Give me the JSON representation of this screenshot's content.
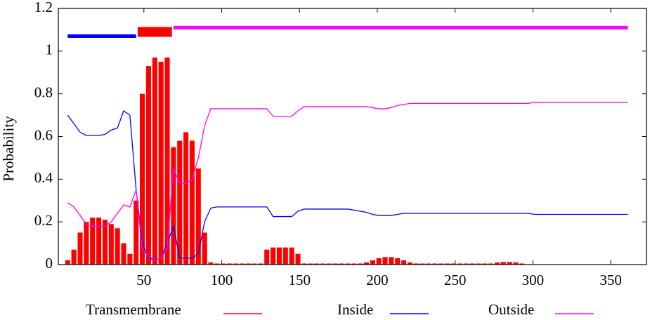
{
  "chart_data": {
    "type": "line",
    "y_label": "Probability",
    "xlim": [
      -5,
      373
    ],
    "ylim": [
      0,
      1.2
    ],
    "xticks": [
      50,
      100,
      150,
      200,
      250,
      300,
      350
    ],
    "yticks": [
      0,
      0.2,
      0.4,
      0.6,
      0.8,
      1,
      1.2
    ],
    "x": [
      1,
      5,
      9,
      13,
      17,
      21,
      25,
      29,
      33,
      37,
      41,
      45,
      49,
      53,
      57,
      61,
      65,
      69,
      73,
      77,
      81,
      85,
      89,
      93,
      97,
      101,
      105,
      109,
      113,
      117,
      121,
      125,
      129,
      133,
      137,
      141,
      145,
      149,
      153,
      157,
      161,
      165,
      169,
      173,
      177,
      181,
      185,
      189,
      193,
      197,
      201,
      205,
      209,
      213,
      217,
      221,
      225,
      229,
      233,
      237,
      241,
      245,
      249,
      253,
      257,
      261,
      265,
      269,
      273,
      277,
      281,
      285,
      289,
      293,
      297,
      301,
      305,
      309,
      313,
      317,
      321,
      325,
      329,
      333,
      337,
      341,
      345,
      349,
      353,
      357,
      361
    ],
    "series": [
      {
        "name": "Transmembrane",
        "type": "bar",
        "color": "#ff0000",
        "values": [
          0.02,
          0.07,
          0.15,
          0.2,
          0.22,
          0.22,
          0.21,
          0.19,
          0.17,
          0.1,
          0.05,
          0.3,
          0.8,
          0.93,
          0.97,
          0.95,
          0.97,
          0.55,
          0.58,
          0.62,
          0.58,
          0.45,
          0.15,
          0.01,
          0.005,
          0.005,
          0.005,
          0.005,
          0.005,
          0.005,
          0.005,
          0.005,
          0.07,
          0.08,
          0.08,
          0.08,
          0.08,
          0.05,
          0.005,
          0.005,
          0.005,
          0.005,
          0.005,
          0.005,
          0.005,
          0.005,
          0.005,
          0.005,
          0.01,
          0.02,
          0.03,
          0.035,
          0.035,
          0.03,
          0.02,
          0.01,
          0.005,
          0.005,
          0.005,
          0.005,
          0.005,
          0.005,
          0.005,
          0.005,
          0.005,
          0.005,
          0.005,
          0.005,
          0.005,
          0.01,
          0.012,
          0.012,
          0.01,
          0.005,
          0,
          0,
          0,
          0,
          0,
          0,
          0,
          0,
          0,
          0,
          0,
          0,
          0,
          0,
          0,
          0,
          0
        ]
      },
      {
        "name": "Inside",
        "type": "line",
        "color": "#0000ff",
        "values": [
          0.7,
          0.66,
          0.62,
          0.605,
          0.605,
          0.605,
          0.61,
          0.63,
          0.64,
          0.72,
          0.7,
          0.35,
          0.1,
          0.03,
          0.02,
          0.03,
          0.1,
          0.18,
          0.03,
          0.03,
          0.03,
          0.05,
          0.2,
          0.265,
          0.27,
          0.27,
          0.27,
          0.27,
          0.27,
          0.27,
          0.27,
          0.27,
          0.27,
          0.225,
          0.225,
          0.225,
          0.225,
          0.25,
          0.26,
          0.26,
          0.26,
          0.26,
          0.26,
          0.26,
          0.26,
          0.26,
          0.255,
          0.25,
          0.245,
          0.235,
          0.23,
          0.23,
          0.23,
          0.235,
          0.24,
          0.24,
          0.24,
          0.24,
          0.24,
          0.24,
          0.24,
          0.24,
          0.24,
          0.24,
          0.24,
          0.24,
          0.24,
          0.24,
          0.24,
          0.24,
          0.24,
          0.24,
          0.24,
          0.24,
          0.24,
          0.235,
          0.235,
          0.235,
          0.235,
          0.235,
          0.235,
          0.235,
          0.235,
          0.235,
          0.235,
          0.235,
          0.235,
          0.235,
          0.235,
          0.235,
          0.235
        ]
      },
      {
        "name": "Outside",
        "type": "line",
        "color": "#ff00ff",
        "values": [
          0.29,
          0.27,
          0.23,
          0.19,
          0.18,
          0.18,
          0.18,
          0.2,
          0.24,
          0.28,
          0.27,
          0.35,
          0.07,
          0.04,
          0.02,
          0.03,
          0.08,
          0.45,
          0.38,
          0.38,
          0.4,
          0.5,
          0.65,
          0.73,
          0.73,
          0.73,
          0.73,
          0.73,
          0.73,
          0.73,
          0.73,
          0.73,
          0.73,
          0.695,
          0.695,
          0.695,
          0.695,
          0.72,
          0.74,
          0.74,
          0.74,
          0.74,
          0.74,
          0.74,
          0.74,
          0.74,
          0.74,
          0.74,
          0.74,
          0.735,
          0.73,
          0.73,
          0.735,
          0.745,
          0.75,
          0.755,
          0.755,
          0.755,
          0.755,
          0.755,
          0.755,
          0.755,
          0.755,
          0.755,
          0.755,
          0.755,
          0.755,
          0.755,
          0.755,
          0.755,
          0.755,
          0.755,
          0.755,
          0.755,
          0.755,
          0.76,
          0.76,
          0.76,
          0.76,
          0.76,
          0.76,
          0.76,
          0.76,
          0.76,
          0.76,
          0.76,
          0.76,
          0.76,
          0.76,
          0.76,
          0.76
        ]
      }
    ],
    "topology": [
      {
        "start": 1,
        "end": 45,
        "level": 1.07,
        "color": "#0000ff"
      },
      {
        "start": 46,
        "end": 68,
        "level": 1.09,
        "color": "#ff0000"
      },
      {
        "start": 69,
        "end": 361,
        "level": 1.11,
        "color": "#ff00ff"
      }
    ]
  }
}
